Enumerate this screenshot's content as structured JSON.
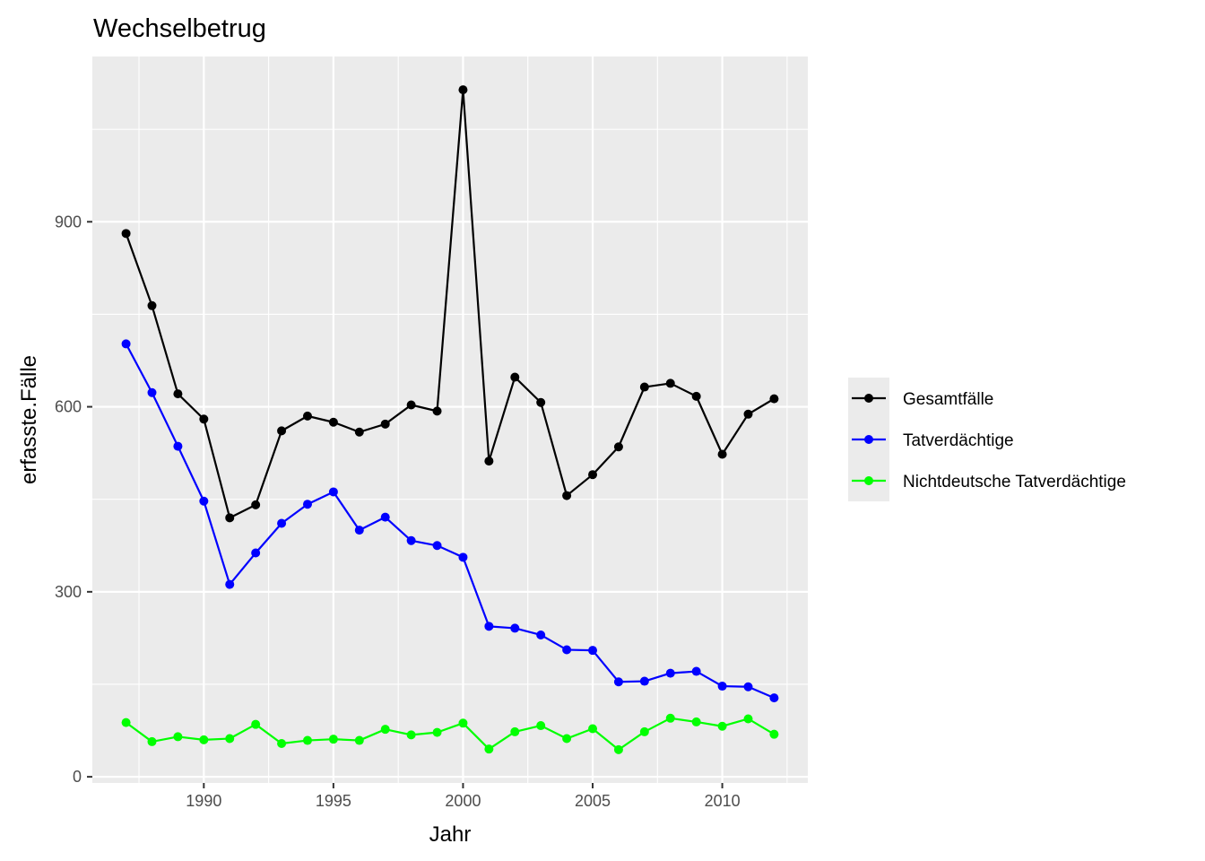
{
  "chart_data": {
    "type": "line",
    "title": "Wechselbetrug",
    "xlabel": "Jahr",
    "ylabel": "erfasste.Fälle",
    "xlim": [
      1985.7,
      2013.3
    ],
    "ylim": [
      -10,
      1168
    ],
    "x_ticks": [
      1990,
      1995,
      2000,
      2005,
      2010
    ],
    "x_tick_labels": [
      "1990",
      "1995",
      "2000",
      "2005",
      "2010"
    ],
    "y_ticks": [
      0,
      300,
      600,
      900
    ],
    "y_tick_labels": [
      "0",
      "300",
      "600",
      "900"
    ],
    "grid": true,
    "legend_position": "right",
    "x": [
      1987,
      1988,
      1989,
      1990,
      1991,
      1992,
      1993,
      1994,
      1995,
      1996,
      1997,
      1998,
      1999,
      2000,
      2001,
      2002,
      2003,
      2004,
      2005,
      2006,
      2007,
      2008,
      2009,
      2010,
      2011,
      2012
    ],
    "series": [
      {
        "name": "Gesamtfälle",
        "color": "#000000",
        "values": [
          881,
          764,
          621,
          580,
          420,
          441,
          561,
          585,
          575,
          559,
          572,
          603,
          593,
          1114,
          512,
          648,
          607,
          456,
          490,
          535,
          632,
          638,
          617,
          523,
          588,
          613
        ]
      },
      {
        "name": "Tatverdächtige",
        "color": "#0000ff",
        "values": [
          702,
          623,
          536,
          447,
          312,
          363,
          411,
          442,
          462,
          400,
          421,
          383,
          375,
          356,
          244,
          241,
          230,
          206,
          205,
          154,
          155,
          168,
          171,
          147,
          146,
          128
        ]
      },
      {
        "name": "Nichtdeutsche Tatverdächtige",
        "color": "#00ff00",
        "values": [
          88,
          57,
          65,
          60,
          62,
          85,
          54,
          59,
          61,
          59,
          77,
          68,
          72,
          87,
          45,
          73,
          83,
          62,
          78,
          44,
          73,
          95,
          89,
          82,
          94,
          69
        ]
      }
    ]
  }
}
